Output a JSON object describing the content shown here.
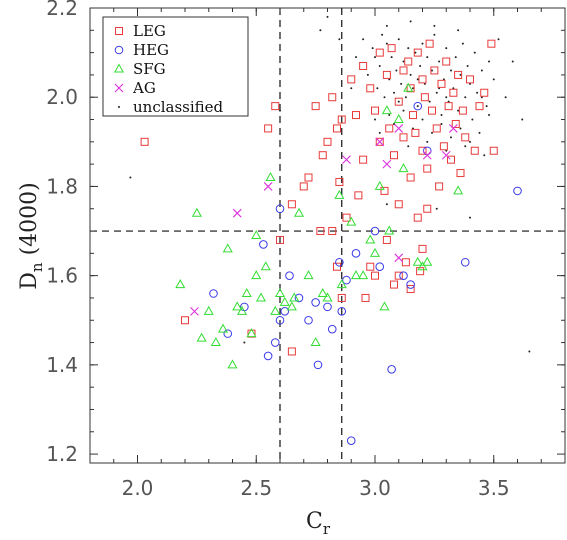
{
  "chart_data": {
    "type": "scatter",
    "title": "",
    "xlabel": "C",
    "xlabel_sub": "r",
    "ylabel": "D",
    "ylabel_sub": "n",
    "ylabel_suffix": " (4000)",
    "xlim": [
      1.8,
      3.8
    ],
    "ylim": [
      1.18,
      2.2
    ],
    "xticks": [
      2.0,
      2.5,
      3.0,
      3.5
    ],
    "xtick_labels": [
      "2.0",
      "2.5",
      "3.0",
      "3.5"
    ],
    "yticks": [
      1.2,
      1.4,
      1.6,
      1.8,
      2.0,
      2.2
    ],
    "ytick_labels": [
      "1.2",
      "1.4",
      "1.6",
      "1.8",
      "2.0",
      "2.2"
    ],
    "grid": false,
    "legend_position": "top-left",
    "reference_lines": {
      "vertical": [
        2.6,
        2.86
      ],
      "horizontal": [
        1.7
      ]
    },
    "series": [
      {
        "name": "LEG",
        "marker": "square-open",
        "color": "#e83a3a",
        "points": [
          [
            2.03,
            1.9
          ],
          [
            2.2,
            1.5
          ],
          [
            2.48,
            1.47
          ],
          [
            2.55,
            1.93
          ],
          [
            2.58,
            1.98
          ],
          [
            2.6,
            1.68
          ],
          [
            2.65,
            1.76
          ],
          [
            2.7,
            1.8
          ],
          [
            2.72,
            1.82
          ],
          [
            2.75,
            1.98
          ],
          [
            2.77,
            1.7
          ],
          [
            2.78,
            1.87
          ],
          [
            2.8,
            1.9
          ],
          [
            2.82,
            2.0
          ],
          [
            2.82,
            1.7
          ],
          [
            2.84,
            1.93
          ],
          [
            2.84,
            1.62
          ],
          [
            2.85,
            1.81
          ],
          [
            2.86,
            1.95
          ],
          [
            2.86,
            1.55
          ],
          [
            2.88,
            1.73
          ],
          [
            2.9,
            2.04
          ],
          [
            2.92,
            1.96
          ],
          [
            2.93,
            1.78
          ],
          [
            2.95,
            2.07
          ],
          [
            2.95,
            1.86
          ],
          [
            2.96,
            1.55
          ],
          [
            2.98,
            2.02
          ],
          [
            3.0,
            1.97
          ],
          [
            3.0,
            1.6
          ],
          [
            3.02,
            2.1
          ],
          [
            3.02,
            1.9
          ],
          [
            3.04,
            1.79
          ],
          [
            3.05,
            2.05
          ],
          [
            3.05,
            1.68
          ],
          [
            3.06,
            1.93
          ],
          [
            3.07,
            2.11
          ],
          [
            3.08,
            1.87
          ],
          [
            3.08,
            1.58
          ],
          [
            3.1,
            1.99
          ],
          [
            3.1,
            1.76
          ],
          [
            3.12,
            2.06
          ],
          [
            3.12,
            1.91
          ],
          [
            3.13,
            1.63
          ],
          [
            3.14,
            2.08
          ],
          [
            3.15,
            2.02
          ],
          [
            3.15,
            1.82
          ],
          [
            3.16,
            1.96
          ],
          [
            3.17,
            1.92
          ],
          [
            3.18,
            2.1
          ],
          [
            3.18,
            1.73
          ],
          [
            3.19,
            1.61
          ],
          [
            3.2,
            2.04
          ],
          [
            3.2,
            1.88
          ],
          [
            3.21,
            2.0
          ],
          [
            3.22,
            1.84
          ],
          [
            3.22,
            1.75
          ],
          [
            3.23,
            2.12
          ],
          [
            3.24,
            1.97
          ],
          [
            3.25,
            2.06
          ],
          [
            3.26,
            1.93
          ],
          [
            3.27,
            1.8
          ],
          [
            3.28,
            2.03
          ],
          [
            3.29,
            1.89
          ],
          [
            3.3,
            2.08
          ],
          [
            3.31,
            1.98
          ],
          [
            3.32,
            1.86
          ],
          [
            3.33,
            2.01
          ],
          [
            3.34,
            1.94
          ],
          [
            3.35,
            2.05
          ],
          [
            3.36,
            1.83
          ],
          [
            3.37,
            1.97
          ],
          [
            3.38,
            1.91
          ],
          [
            3.4,
            2.04
          ],
          [
            3.42,
            1.88
          ],
          [
            3.44,
            1.98
          ],
          [
            3.46,
            2.01
          ],
          [
            3.49,
            2.12
          ],
          [
            3.5,
            1.88
          ],
          [
            3.15,
            1.57
          ],
          [
            3.1,
            1.6
          ],
          [
            3.2,
            1.66
          ],
          [
            2.98,
            1.62
          ],
          [
            2.65,
            1.43
          ]
        ]
      },
      {
        "name": "HEG",
        "marker": "circle-open",
        "color": "#3a3ae8",
        "points": [
          [
            2.32,
            1.56
          ],
          [
            2.38,
            1.47
          ],
          [
            2.45,
            1.53
          ],
          [
            2.53,
            1.67
          ],
          [
            2.55,
            1.42
          ],
          [
            2.58,
            1.45
          ],
          [
            2.6,
            1.75
          ],
          [
            2.62,
            1.52
          ],
          [
            2.64,
            1.6
          ],
          [
            2.68,
            1.55
          ],
          [
            2.72,
            1.5
          ],
          [
            2.75,
            1.54
          ],
          [
            2.76,
            1.4
          ],
          [
            2.8,
            1.53
          ],
          [
            2.82,
            1.48
          ],
          [
            2.85,
            1.63
          ],
          [
            2.86,
            1.52
          ],
          [
            2.88,
            1.59
          ],
          [
            2.9,
            1.23
          ],
          [
            2.92,
            1.65
          ],
          [
            3.0,
            1.7
          ],
          [
            3.02,
            1.62
          ],
          [
            3.07,
            1.39
          ],
          [
            3.12,
            1.6
          ],
          [
            3.15,
            1.58
          ],
          [
            3.18,
            1.98
          ],
          [
            3.22,
            1.88
          ],
          [
            3.38,
            1.63
          ],
          [
            3.6,
            1.79
          ],
          [
            2.6,
            1.5
          ]
        ]
      },
      {
        "name": "SFG",
        "marker": "triangle-open",
        "color": "#33dd33",
        "points": [
          [
            2.18,
            1.58
          ],
          [
            2.25,
            1.74
          ],
          [
            2.27,
            1.46
          ],
          [
            2.3,
            1.52
          ],
          [
            2.33,
            1.45
          ],
          [
            2.36,
            1.48
          ],
          [
            2.38,
            1.66
          ],
          [
            2.4,
            1.4
          ],
          [
            2.42,
            1.53
          ],
          [
            2.44,
            1.52
          ],
          [
            2.46,
            1.56
          ],
          [
            2.48,
            1.47
          ],
          [
            2.5,
            1.6
          ],
          [
            2.5,
            1.69
          ],
          [
            2.52,
            1.55
          ],
          [
            2.54,
            1.62
          ],
          [
            2.56,
            1.82
          ],
          [
            2.58,
            1.52
          ],
          [
            2.6,
            1.56
          ],
          [
            2.62,
            1.54
          ],
          [
            2.65,
            1.53
          ],
          [
            2.66,
            1.55
          ],
          [
            2.68,
            1.74
          ],
          [
            2.72,
            1.6
          ],
          [
            2.75,
            1.45
          ],
          [
            2.78,
            1.56
          ],
          [
            2.8,
            1.55
          ],
          [
            2.85,
            1.78
          ],
          [
            2.86,
            1.58
          ],
          [
            2.9,
            1.72
          ],
          [
            2.92,
            1.6
          ],
          [
            2.95,
            1.6
          ],
          [
            2.98,
            1.68
          ],
          [
            3.0,
            1.65
          ],
          [
            3.02,
            1.8
          ],
          [
            3.04,
            1.53
          ],
          [
            3.06,
            1.7
          ],
          [
            3.1,
            1.95
          ],
          [
            3.12,
            1.84
          ],
          [
            3.18,
            1.63
          ],
          [
            3.2,
            1.62
          ],
          [
            3.22,
            1.63
          ],
          [
            3.05,
            1.97
          ],
          [
            3.35,
            1.79
          ],
          [
            3.14,
            2.02
          ]
        ]
      },
      {
        "name": "AG",
        "marker": "cross",
        "color": "#dd33dd",
        "points": [
          [
            2.24,
            1.52
          ],
          [
            2.42,
            1.74
          ],
          [
            2.55,
            1.8
          ],
          [
            2.88,
            1.86
          ],
          [
            3.02,
            1.9
          ],
          [
            3.05,
            1.85
          ],
          [
            3.1,
            1.93
          ],
          [
            3.1,
            1.64
          ],
          [
            3.22,
            1.87
          ],
          [
            3.3,
            1.87
          ],
          [
            3.33,
            1.93
          ]
        ]
      },
      {
        "name": "unclassified",
        "marker": "dot",
        "color": "#222222",
        "points": [
          [
            1.97,
            1.82
          ],
          [
            2.45,
            1.45
          ],
          [
            2.6,
            1.97
          ],
          [
            2.77,
            2.15
          ],
          [
            2.8,
            2.18
          ],
          [
            2.85,
            2.13
          ],
          [
            2.9,
            2.02
          ],
          [
            2.92,
            2.09
          ],
          [
            2.95,
            2.13
          ],
          [
            2.97,
            2.05
          ],
          [
            2.99,
            2.11
          ],
          [
            3.0,
            2.09
          ],
          [
            3.01,
            2.02
          ],
          [
            3.02,
            2.07
          ],
          [
            3.03,
            2.14
          ],
          [
            3.04,
            2.0
          ],
          [
            3.05,
            2.12
          ],
          [
            3.06,
            2.04
          ],
          [
            3.07,
            2.09
          ],
          [
            3.08,
            2.01
          ],
          [
            3.09,
            2.06
          ],
          [
            3.1,
            2.13
          ],
          [
            3.11,
            2.03
          ],
          [
            3.12,
            2.08
          ],
          [
            3.13,
            2.0
          ],
          [
            3.14,
            2.11
          ],
          [
            3.15,
            2.05
          ],
          [
            3.16,
            2.02
          ],
          [
            3.17,
            2.1
          ],
          [
            3.18,
            1.98
          ],
          [
            3.19,
            2.07
          ],
          [
            3.2,
            2.12
          ],
          [
            3.21,
            2.03
          ],
          [
            3.22,
            2.09
          ],
          [
            3.23,
            1.99
          ],
          [
            3.24,
            2.06
          ],
          [
            3.25,
            2.14
          ],
          [
            3.26,
            2.01
          ],
          [
            3.27,
            2.08
          ],
          [
            3.28,
            1.96
          ],
          [
            3.29,
            2.04
          ],
          [
            3.3,
            2.11
          ],
          [
            3.31,
            1.99
          ],
          [
            3.32,
            2.06
          ],
          [
            3.33,
            2.02
          ],
          [
            3.34,
            2.09
          ],
          [
            3.35,
            1.97
          ],
          [
            3.36,
            2.05
          ],
          [
            3.37,
            2.12
          ],
          [
            3.38,
            2.0
          ],
          [
            3.39,
            2.07
          ],
          [
            3.4,
            2.03
          ],
          [
            3.41,
            1.95
          ],
          [
            3.42,
            2.1
          ],
          [
            3.43,
            2.01
          ],
          [
            3.45,
            2.06
          ],
          [
            3.47,
            1.98
          ],
          [
            3.5,
            2.04
          ],
          [
            3.52,
            2.13
          ],
          [
            3.55,
            2.0
          ],
          [
            3.58,
            2.08
          ],
          [
            3.0,
            1.95
          ],
          [
            3.02,
            1.92
          ],
          [
            3.06,
            1.96
          ],
          [
            3.08,
            1.94
          ],
          [
            3.12,
            1.97
          ],
          [
            3.16,
            1.93
          ],
          [
            3.2,
            1.95
          ],
          [
            3.24,
            1.92
          ],
          [
            3.28,
            1.94
          ],
          [
            3.32,
            1.91
          ],
          [
            3.36,
            1.93
          ],
          [
            3.4,
            1.9
          ],
          [
            3.44,
            1.92
          ],
          [
            3.48,
            1.96
          ],
          [
            3.14,
            1.89
          ],
          [
            3.22,
            1.9
          ],
          [
            3.3,
            1.88
          ],
          [
            3.38,
            1.89
          ],
          [
            3.46,
            1.87
          ],
          [
            3.05,
            2.16
          ],
          [
            3.15,
            2.17
          ],
          [
            3.25,
            2.16
          ],
          [
            3.35,
            2.15
          ],
          [
            3.1,
            1.99
          ],
          [
            3.3,
            2.0
          ],
          [
            3.45,
            2.0
          ],
          [
            3.65,
            1.43
          ],
          [
            3.05,
            1.76
          ],
          [
            3.26,
            1.75
          ],
          [
            3.4,
            1.73
          ],
          [
            3.62,
            1.95
          ],
          [
            3.48,
            2.08
          ],
          [
            3.18,
            2.04
          ],
          [
            3.27,
            2.02
          ]
        ]
      }
    ]
  }
}
